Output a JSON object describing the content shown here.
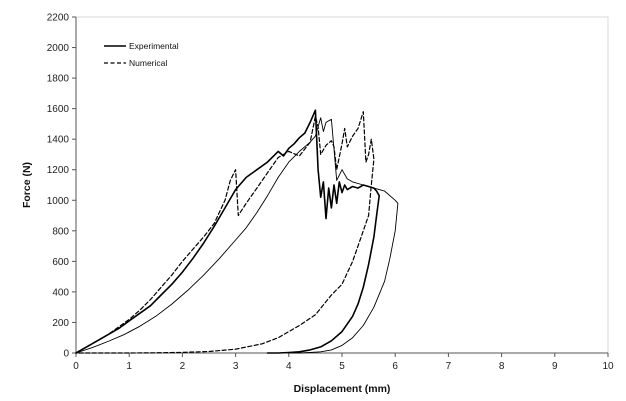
{
  "chart_data": {
    "type": "line",
    "title": "",
    "xlabel": "Displacement (mm)",
    "ylabel": "Force (N)",
    "xlim": [
      0,
      10
    ],
    "ylim": [
      0,
      2200
    ],
    "x_ticks": [
      "0",
      "1",
      "2",
      "3",
      "4",
      "5",
      "6",
      "7",
      "8",
      "9",
      "10"
    ],
    "y_ticks": [
      "0",
      "200",
      "400",
      "600",
      "800",
      "1000",
      "1200",
      "1400",
      "1600",
      "1800",
      "2000",
      "2200"
    ],
    "grid": false,
    "legend_position": "top-left",
    "series": [
      {
        "name": "Experimental",
        "style": "solid",
        "color": "#000000",
        "width": 1.6,
        "x": [
          0,
          0.2,
          0.4,
          0.6,
          0.8,
          1.0,
          1.2,
          1.4,
          1.6,
          1.8,
          2.0,
          2.2,
          2.4,
          2.6,
          2.8,
          3.0,
          3.2,
          3.4,
          3.6,
          3.8,
          3.9,
          4.0,
          4.1,
          4.2,
          4.3,
          4.4,
          4.5,
          4.55,
          4.6,
          4.65,
          4.7,
          4.75,
          4.8,
          4.85,
          4.9,
          4.95,
          5.0,
          5.05,
          5.1,
          5.2,
          5.3,
          5.4,
          5.5,
          5.6,
          5.65,
          5.7,
          5.65,
          5.6,
          5.5,
          5.4,
          5.3,
          5.2,
          5.0,
          4.8,
          4.6,
          4.4,
          4.2,
          4.0,
          3.8,
          3.6
        ],
        "y": [
          0,
          40,
          80,
          120,
          160,
          210,
          260,
          310,
          380,
          450,
          530,
          620,
          720,
          830,
          950,
          1070,
          1150,
          1200,
          1250,
          1320,
          1290,
          1340,
          1370,
          1410,
          1440,
          1510,
          1590,
          1200,
          1020,
          1120,
          880,
          1080,
          950,
          1100,
          980,
          1120,
          1050,
          1100,
          1070,
          1090,
          1080,
          1100,
          1090,
          1080,
          1060,
          1030,
          900,
          760,
          580,
          430,
          320,
          240,
          140,
          80,
          40,
          20,
          8,
          3,
          0,
          0
        ]
      },
      {
        "name": "",
        "style": "solid",
        "color": "#000000",
        "width": 0.9,
        "x": [
          0,
          0.3,
          0.6,
          0.9,
          1.2,
          1.5,
          1.8,
          2.1,
          2.4,
          2.7,
          3.0,
          3.2,
          3.4,
          3.6,
          3.8,
          4.0,
          4.2,
          4.4,
          4.5,
          4.6,
          4.65,
          4.7,
          4.8,
          4.9,
          5.0,
          5.1,
          5.2,
          5.4,
          5.6,
          5.8,
          6.0,
          6.05,
          6.0,
          5.9,
          5.8,
          5.6,
          5.4,
          5.2,
          5.0,
          4.8,
          4.6,
          4.4,
          4.2,
          4.0
        ],
        "y": [
          0,
          35,
          75,
          120,
          175,
          240,
          320,
          410,
          510,
          620,
          740,
          820,
          920,
          1030,
          1150,
          1250,
          1320,
          1380,
          1420,
          1540,
          1450,
          1510,
          1530,
          1130,
          1200,
          1140,
          1120,
          1100,
          1080,
          1060,
          1000,
          980,
          800,
          620,
          470,
          300,
          180,
          100,
          50,
          20,
          8,
          3,
          0,
          0
        ]
      },
      {
        "name": "Numerical",
        "style": "dashed",
        "color": "#000000",
        "width": 1.2,
        "x": [
          0,
          0.2,
          0.4,
          0.6,
          0.8,
          1.0,
          1.2,
          1.4,
          1.6,
          1.8,
          2.0,
          2.2,
          2.4,
          2.6,
          2.8,
          2.9,
          3.0,
          3.05,
          3.2,
          3.4,
          3.6,
          3.8,
          4.0,
          4.2,
          4.4,
          4.5,
          4.55,
          4.6,
          4.7,
          4.8,
          4.85,
          4.9,
          5.0,
          5.05,
          5.1,
          5.2,
          5.3,
          5.4,
          5.45,
          5.5,
          5.55,
          5.6,
          5.55,
          5.5,
          5.45,
          5.4,
          5.3,
          5.2,
          5.0,
          4.8,
          4.5,
          4.2,
          4.0,
          3.8,
          3.5,
          3.0,
          2.5,
          2.0,
          1.5,
          1.0,
          0.5,
          0
        ],
        "y": [
          0,
          40,
          80,
          120,
          170,
          220,
          280,
          350,
          430,
          510,
          600,
          680,
          760,
          850,
          1000,
          1130,
          1200,
          900,
          980,
          1080,
          1180,
          1280,
          1320,
          1290,
          1380,
          1550,
          1480,
          1300,
          1360,
          1390,
          1350,
          1200,
          1370,
          1470,
          1350,
          1420,
          1470,
          1580,
          1250,
          1300,
          1400,
          1270,
          1100,
          900,
          850,
          800,
          700,
          600,
          450,
          380,
          250,
          180,
          140,
          100,
          60,
          25,
          10,
          4,
          1,
          0,
          0,
          0
        ]
      }
    ]
  }
}
